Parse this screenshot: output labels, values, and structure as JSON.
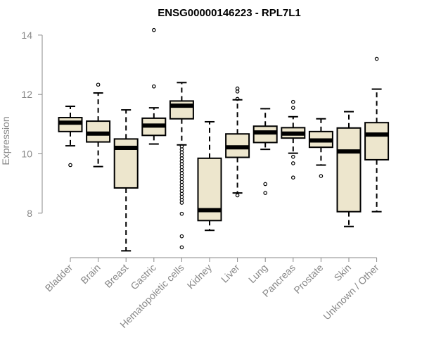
{
  "chart_data": {
    "type": "boxplot",
    "title": "ENSG00000146223 - RPL7L1",
    "ylabel": "Expression",
    "xlabel": "",
    "ylim": [
      6.5,
      14.4
    ],
    "yticks": [
      8,
      10,
      12,
      14
    ],
    "categories": [
      "Bladder",
      "Brain",
      "Breast",
      "Gastric",
      "Hematopoietic cells",
      "Kidney",
      "Liver",
      "Lung",
      "Pancreas",
      "Prostate",
      "Skin",
      "Unknown / Other"
    ],
    "boxes": [
      {
        "name": "Bladder",
        "whisker_low": 10.27,
        "q1": 10.75,
        "median": 11.05,
        "q3": 11.22,
        "whisker_high": 11.6,
        "outliers": [
          9.62
        ]
      },
      {
        "name": "Brain",
        "whisker_low": 9.57,
        "q1": 10.4,
        "median": 10.68,
        "q3": 11.1,
        "whisker_high": 12.05,
        "outliers": [
          12.33
        ]
      },
      {
        "name": "Breast",
        "whisker_low": 6.73,
        "q1": 8.85,
        "median": 10.2,
        "q3": 10.5,
        "whisker_high": 11.48,
        "outliers": []
      },
      {
        "name": "Gastric",
        "whisker_low": 10.33,
        "q1": 10.62,
        "median": 10.95,
        "q3": 11.2,
        "whisker_high": 11.55,
        "outliers": [
          12.27,
          14.17
        ]
      },
      {
        "name": "Hematopoietic cells",
        "whisker_low": 10.3,
        "q1": 11.18,
        "median": 11.62,
        "q3": 11.78,
        "whisker_high": 12.4,
        "outliers": [
          10.25,
          10.15,
          10.05,
          9.95,
          9.85,
          9.75,
          9.65,
          9.55,
          9.45,
          9.35,
          9.25,
          9.15,
          9.05,
          8.95,
          8.85,
          8.75,
          8.65,
          8.55,
          8.45,
          8.35,
          7.98,
          7.22,
          6.85
        ]
      },
      {
        "name": "Kidney",
        "whisker_low": 7.42,
        "q1": 7.75,
        "median": 8.1,
        "q3": 9.85,
        "whisker_high": 11.08,
        "outliers": []
      },
      {
        "name": "Liver",
        "whisker_low": 8.68,
        "q1": 9.88,
        "median": 10.22,
        "q3": 10.67,
        "whisker_high": 11.82,
        "outliers": [
          8.6,
          11.85,
          12.1,
          12.2
        ]
      },
      {
        "name": "Lung",
        "whisker_low": 10.15,
        "q1": 10.38,
        "median": 10.72,
        "q3": 10.93,
        "whisker_high": 11.52,
        "outliers": [
          8.68,
          8.98
        ]
      },
      {
        "name": "Pancreas",
        "whisker_low": 10.02,
        "q1": 10.53,
        "median": 10.68,
        "q3": 10.88,
        "whisker_high": 11.25,
        "outliers": [
          9.2,
          9.68,
          9.9,
          11.55,
          11.75
        ]
      },
      {
        "name": "Prostate",
        "whisker_low": 9.62,
        "q1": 10.22,
        "median": 10.45,
        "q3": 10.75,
        "whisker_high": 11.18,
        "outliers": [
          9.25
        ]
      },
      {
        "name": "Skin",
        "whisker_low": 7.55,
        "q1": 8.05,
        "median": 10.08,
        "q3": 10.87,
        "whisker_high": 11.42,
        "outliers": []
      },
      {
        "name": "Unknown / Other",
        "whisker_low": 8.05,
        "q1": 9.8,
        "median": 10.65,
        "q3": 11.05,
        "whisker_high": 12.18,
        "outliers": [
          13.2
        ]
      }
    ],
    "colors": {
      "box_fill": "#ede6cd",
      "box_stroke": "#000000",
      "median": "#000000",
      "axis": "#888888",
      "text": "#888888",
      "title": "#000000"
    },
    "grid": false,
    "legend": "none"
  }
}
